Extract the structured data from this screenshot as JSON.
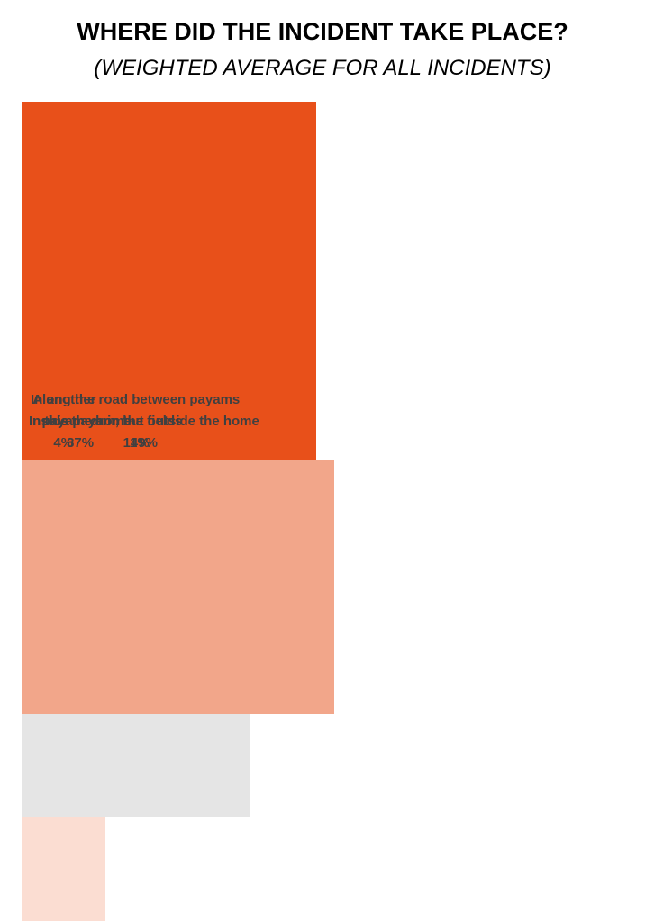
{
  "chart_data": {
    "type": "treemap",
    "title": "WHERE DID THE INCIDENT TAKE PLACE?",
    "subtitle": "(WEIGHTED AVERAGE FOR ALL INCIDENTS)",
    "categories": [
      "In this payam, but outside the home",
      "Inside the home",
      "Along the road between payams or in the fields",
      "In another payam"
    ],
    "values": [
      49,
      37,
      11,
      4
    ],
    "value_labels": [
      "49%",
      "37%",
      "11%",
      "4%"
    ],
    "colors": [
      "#E8501A",
      "#F2A68A",
      "#E5E5E5",
      "#FBDDD2"
    ]
  }
}
